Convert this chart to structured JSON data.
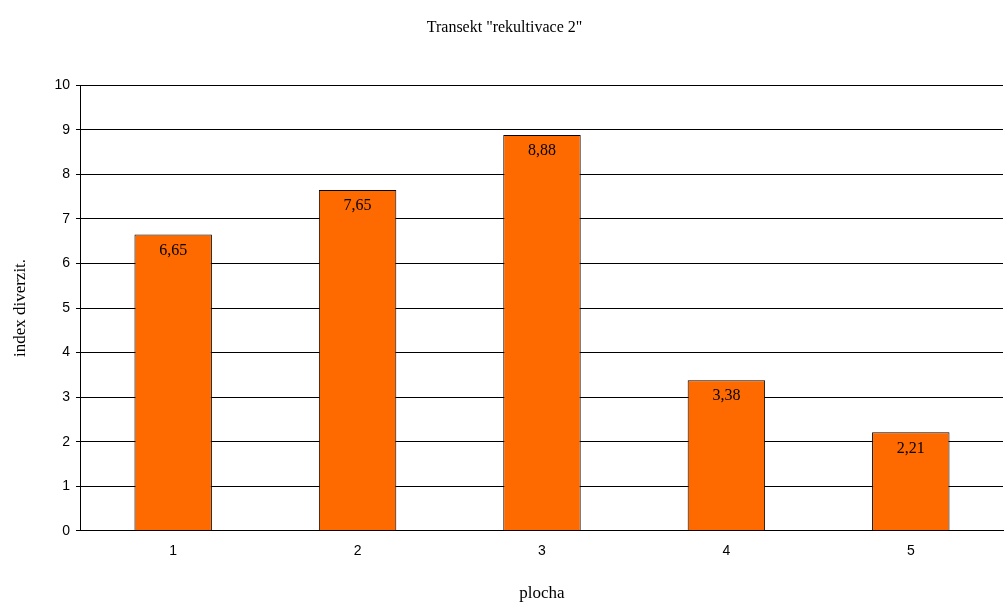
{
  "chart_data": {
    "type": "bar",
    "title": "Transekt \"rekultivace 2\"",
    "xlabel": "plocha",
    "ylabel": "index diverzit.",
    "categories": [
      "1",
      "2",
      "3",
      "4",
      "5"
    ],
    "values": [
      6.65,
      7.65,
      8.88,
      3.38,
      2.21
    ],
    "value_labels": [
      "6,65",
      "7,65",
      "8,88",
      "3,38",
      "2,21"
    ],
    "color": "#ff6a00",
    "ylim": [
      0,
      10
    ],
    "yticks": [
      0,
      1,
      2,
      3,
      4,
      5,
      6,
      7,
      8,
      9,
      10
    ],
    "grid": "y",
    "legend": false
  }
}
